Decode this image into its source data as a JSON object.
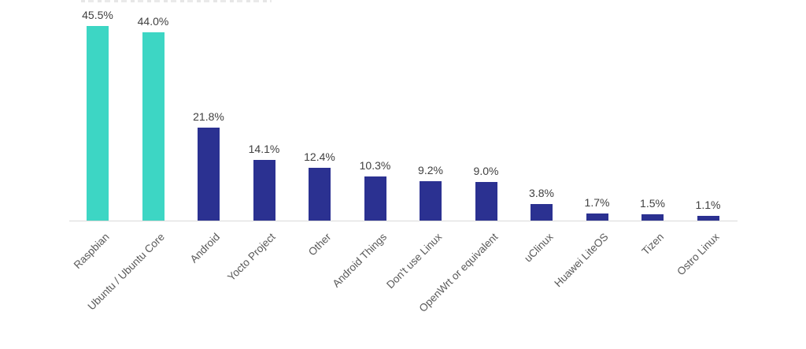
{
  "chart_data": {
    "type": "bar",
    "title": "",
    "xlabel": "",
    "ylabel": "",
    "ylim": [
      0,
      50
    ],
    "grid": false,
    "legend": false,
    "categories": [
      "Raspbian",
      "Ubuntu / Ubuntu Core",
      "Android",
      "Yocto Project",
      "Other",
      "Android Things",
      "Don't use Linux",
      "OpenWrt or equivalent",
      "uClinux",
      "Huawei LiteOS",
      "Tizen",
      "Ostro Linux"
    ],
    "values": [
      45.5,
      44.0,
      21.8,
      14.1,
      12.4,
      10.3,
      9.2,
      9.0,
      3.8,
      1.7,
      1.5,
      1.1
    ],
    "value_labels": [
      "45.5%",
      "44.0%",
      "21.8%",
      "14.1%",
      "12.4%",
      "10.3%",
      "9.2%",
      "9.0%",
      "3.8%",
      "1.7%",
      "1.5%",
      "1.1%"
    ],
    "bar_colors": [
      "#3dd6c4",
      "#3dd6c4",
      "#2b3191",
      "#2b3191",
      "#2b3191",
      "#2b3191",
      "#2b3191",
      "#2b3191",
      "#2b3191",
      "#2b3191",
      "#2b3191",
      "#2b3191"
    ],
    "colors": {
      "highlight": "#3dd6c4",
      "default": "#2b3191",
      "axis_line": "#d9d9d9",
      "value_label": "#404040",
      "category_label": "#595959"
    },
    "category_label_rotation_deg": -45
  }
}
